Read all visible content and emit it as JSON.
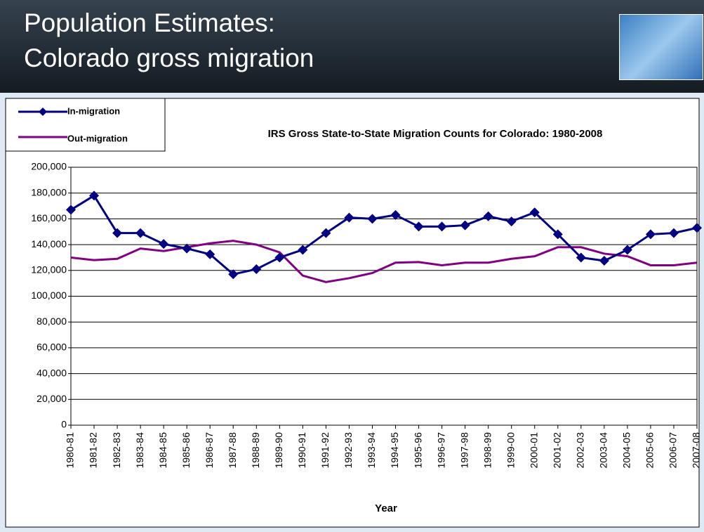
{
  "slide": {
    "title_lines": [
      "Population Estimates:",
      "Colorado gross migration"
    ]
  },
  "chart_data": {
    "type": "line",
    "title": "IRS Gross State-to-State Migration Counts for Colorado: 1980-2008",
    "x_label": "Year",
    "categories": [
      "1980-81",
      "1981-82",
      "1982-83",
      "1983-84",
      "1984-85",
      "1985-86",
      "1986-87",
      "1987-88",
      "1988-89",
      "1989-90",
      "1990-91",
      "1991-92",
      "1992-93",
      "1993-94",
      "1994-95",
      "1995-96",
      "1996-97",
      "1997-98",
      "1998-99",
      "1999-00",
      "2000-01",
      "2001-02",
      "2002-03",
      "2003-04",
      "2004-05",
      "2005-06",
      "2006-07",
      "2007-08"
    ],
    "series": [
      {
        "name": "In-migration",
        "color": "#000080",
        "marker": "diamond",
        "values": [
          167000,
          178000,
          149000,
          149000,
          140500,
          137000,
          132500,
          117000,
          121000,
          130000,
          136000,
          149000,
          161000,
          160000,
          163000,
          154000,
          154000,
          155000,
          162000,
          158000,
          165000,
          148000,
          130000,
          127500,
          136000,
          148000,
          149000,
          153000
        ]
      },
      {
        "name": "Out-migration",
        "color": "#800080",
        "values": [
          130000,
          128000,
          129000,
          137000,
          135000,
          138000,
          141000,
          143000,
          140000,
          134000,
          116000,
          111000,
          114000,
          118000,
          126000,
          126500,
          124000,
          126000,
          126000,
          129000,
          131000,
          138000,
          138000,
          133000,
          131000,
          124000,
          124000,
          126000
        ]
      }
    ],
    "ylim": [
      0,
      200000
    ],
    "yticks": [
      0,
      {
        "value": 20000,
        "label": "20,000"
      },
      {
        "value": 40000,
        "label": "40,000"
      },
      {
        "value": 60000,
        "label": "60,000"
      },
      {
        "value": 80000,
        "label": "80,000"
      },
      {
        "value": 100000,
        "label": "100,000"
      },
      {
        "value": 120000,
        "label": "120,000"
      },
      {
        "value": 140000,
        "label": "140,000"
      },
      {
        "value": 160000,
        "label": "160,000"
      },
      {
        "value": 180000,
        "label": "180,000"
      },
      {
        "value": 200000,
        "label": "200,000"
      }
    ],
    "grid": true,
    "legend": "top-left"
  }
}
